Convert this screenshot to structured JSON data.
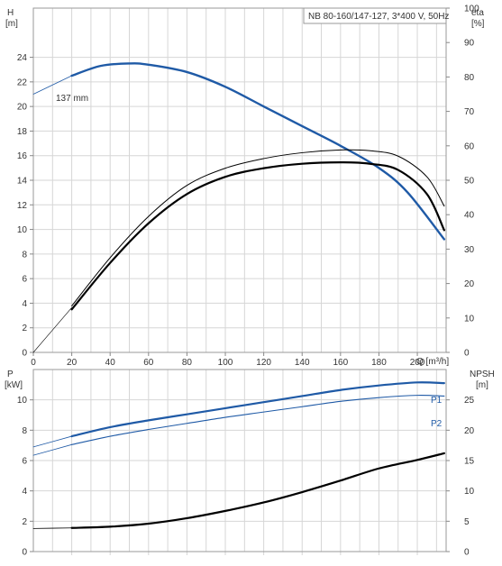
{
  "chart_data": [
    {
      "type": "line",
      "title": "NB 80-160/147-127, 3*400 V, 50Hz",
      "left_axis": {
        "label_line1": "H",
        "label_line2": "[m]",
        "ticks": [
          0,
          2,
          4,
          6,
          8,
          10,
          12,
          14,
          16,
          18,
          20,
          22,
          24
        ],
        "ylim": [
          0,
          28
        ]
      },
      "right_axis": {
        "label_line1": "eta",
        "label_line2": "[%]",
        "ticks": [
          0,
          10,
          20,
          30,
          40,
          50,
          60,
          70,
          80,
          90,
          100
        ],
        "ylim": [
          0,
          100
        ]
      },
      "x_axis": {
        "label": "Q [m³/h]",
        "ticks": [
          0,
          20,
          40,
          60,
          80,
          100,
          120,
          140,
          160,
          180,
          200
        ],
        "xlim": [
          0,
          215
        ]
      },
      "grid": true,
      "annotation": "137 mm",
      "colors": {
        "head": "#1f5aa6",
        "efficiency": "#000000"
      },
      "series": [
        {
          "axis": "left",
          "color": "#1f5aa6",
          "width": 2.4,
          "x": [
            20,
            35,
            50,
            60,
            80,
            100,
            120,
            140,
            160,
            180,
            195,
            214
          ],
          "y": [
            22.5,
            23.3,
            23.5,
            23.4,
            22.8,
            21.6,
            20.0,
            18.4,
            16.8,
            15.0,
            13.0,
            9.2
          ]
        },
        {
          "axis": "left",
          "color": "#1f5aa6",
          "width": 0.8,
          "dashed": false,
          "x": [
            0,
            20
          ],
          "y": [
            21.0,
            22.5
          ]
        },
        {
          "axis": "right",
          "color": "#000000",
          "width": 2.2,
          "x": [
            20,
            40,
            60,
            80,
            100,
            120,
            140,
            160,
            175,
            190,
            205,
            214
          ],
          "y": [
            12.5,
            26,
            37.5,
            46,
            51,
            53.5,
            54.8,
            55.2,
            54.8,
            53,
            46,
            35.5
          ]
        },
        {
          "axis": "right",
          "color": "#000000",
          "width": 1.0,
          "x": [
            20,
            40,
            60,
            80,
            100,
            120,
            140,
            160,
            175,
            190,
            205,
            214
          ],
          "y": [
            13.5,
            27.5,
            39.5,
            48.5,
            53.5,
            56.3,
            58.0,
            58.8,
            58.6,
            57,
            51,
            42.5
          ]
        },
        {
          "axis": "right",
          "color": "#000000",
          "width": 0.6,
          "x": [
            0,
            20
          ],
          "y": [
            0,
            13
          ]
        }
      ]
    },
    {
      "type": "line",
      "left_axis": {
        "label_line1": "P",
        "label_line2": "[kW]",
        "ticks": [
          0,
          2,
          4,
          6,
          8,
          10
        ],
        "ylim": [
          0,
          12
        ]
      },
      "right_axis": {
        "label_line1": "NPSH",
        "label_line2": "[m]",
        "ticks": [
          0,
          5,
          10,
          15,
          20,
          25
        ],
        "ylim": [
          0,
          30
        ]
      },
      "x_axis": {
        "xlim": [
          0,
          215
        ]
      },
      "grid": true,
      "colors": {
        "P1": "#1f5aa6",
        "P2": "#1f5aa6",
        "npsh": "#000000"
      },
      "series": [
        {
          "name": "P1",
          "axis": "left",
          "color": "#1f5aa6",
          "width": 2.2,
          "x": [
            20,
            40,
            60,
            80,
            100,
            120,
            140,
            160,
            180,
            200,
            214
          ],
          "y": [
            7.6,
            8.2,
            8.65,
            9.05,
            9.45,
            9.85,
            10.25,
            10.65,
            10.95,
            11.15,
            11.1
          ]
        },
        {
          "axis": "left",
          "color": "#1f5aa6",
          "width": 0.8,
          "x": [
            0,
            20
          ],
          "y": [
            6.9,
            7.6
          ]
        },
        {
          "name": "P2",
          "axis": "left",
          "color": "#1f5aa6",
          "width": 1.1,
          "x": [
            20,
            40,
            60,
            80,
            100,
            120,
            140,
            160,
            180,
            200,
            214
          ],
          "y": [
            7.05,
            7.6,
            8.05,
            8.45,
            8.85,
            9.2,
            9.55,
            9.9,
            10.15,
            10.3,
            10.25
          ]
        },
        {
          "axis": "left",
          "color": "#1f5aa6",
          "width": 0.8,
          "x": [
            0,
            20
          ],
          "y": [
            6.35,
            7.05
          ]
        },
        {
          "axis": "right",
          "color": "#000000",
          "width": 2.2,
          "x": [
            20,
            40,
            60,
            80,
            100,
            120,
            140,
            160,
            180,
            200,
            214
          ],
          "y": [
            3.9,
            4.1,
            4.6,
            5.5,
            6.7,
            8.1,
            9.8,
            11.7,
            13.7,
            15.1,
            16.2
          ]
        },
        {
          "axis": "right",
          "color": "#000000",
          "width": 0.8,
          "x": [
            0,
            20
          ],
          "y": [
            3.8,
            3.9
          ]
        }
      ]
    }
  ]
}
